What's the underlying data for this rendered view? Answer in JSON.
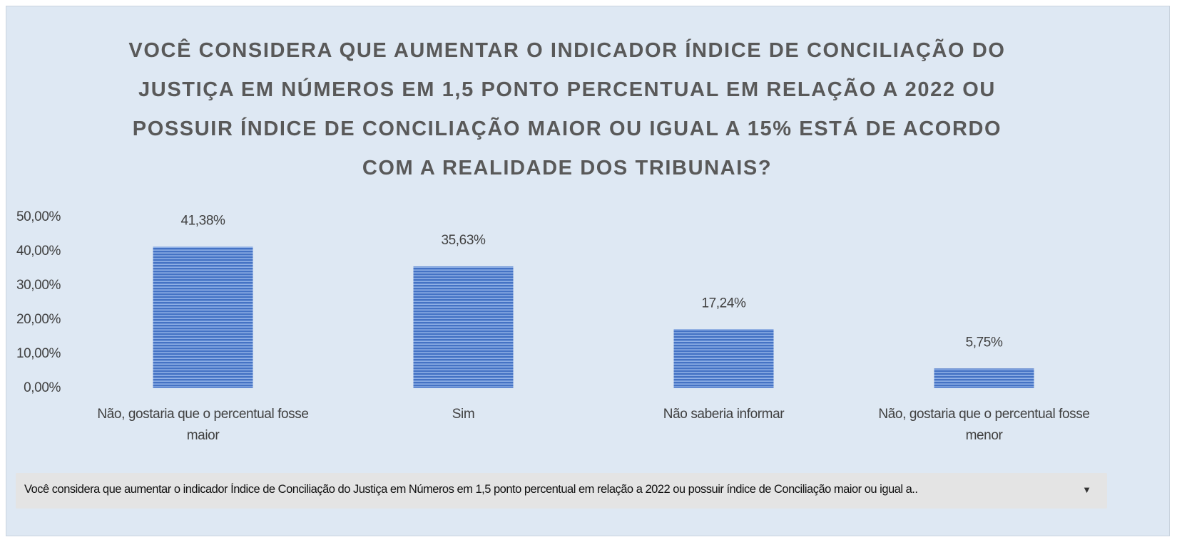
{
  "chart_data": {
    "type": "bar",
    "title": "VOCÊ CONSIDERA QUE AUMENTAR O INDICADOR ÍNDICE DE CONCILIAÇÃO DO JUSTIÇA EM NÚMEROS EM 1,5 PONTO PERCENTUAL EM RELAÇÃO A 2022 OU POSSUIR ÍNDICE DE CONCILIAÇÃO MAIOR OU IGUAL A 15% ESTÁ DE ACORDO COM A REALIDADE DOS TRIBUNAIS?",
    "categories": [
      "Não, gostaria que o percentual fosse maior",
      "Sim",
      "Não saberia informar",
      "Não, gostaria que o percentual fosse menor"
    ],
    "values": [
      41.38,
      35.63,
      17.24,
      5.75
    ],
    "value_labels": [
      "41,38%",
      "35,63%",
      "17,24%",
      "5,75%"
    ],
    "color": "#4472c4",
    "ylim": [
      0,
      50
    ],
    "yticks": [
      {
        "value": 0,
        "label": "0,00%"
      },
      {
        "value": 10,
        "label": "10,00%"
      },
      {
        "value": 20,
        "label": "20,00%"
      },
      {
        "value": 30,
        "label": "30,00%"
      },
      {
        "value": 40,
        "label": "40,00%"
      },
      {
        "value": 50,
        "label": "50,00%"
      }
    ],
    "grid": false,
    "filter": "Você considera que aumentar o indicador Índice de Conciliação do Justiça em Números em 1,5 ponto percentual em relação a 2022 ou possuir índice de Conciliação maior ou igual a.."
  }
}
